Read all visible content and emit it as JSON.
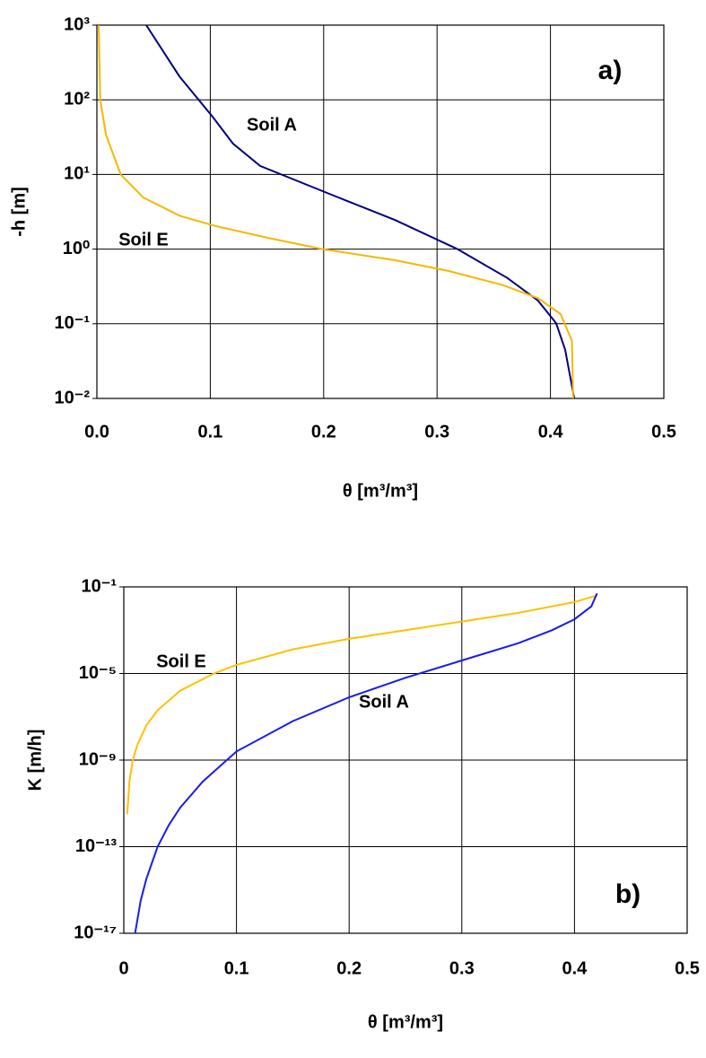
{
  "chart_data": [
    {
      "type": "line",
      "panel_label": "a)",
      "x_label": "θ [m³/m³]",
      "y_label": "-h [m]",
      "xlim": [
        0,
        0.5
      ],
      "xticks": [
        {
          "value": 0,
          "label": "0.0"
        },
        0.1,
        0.2,
        0.3,
        0.4,
        0.5
      ],
      "ylim": [
        0.01,
        1000
      ],
      "y_log": true,
      "yticks": [
        {
          "value": 0.01,
          "label": "10⁻²"
        },
        {
          "value": 0.1,
          "label": "10⁻¹"
        },
        {
          "value": 1,
          "label": "10⁰"
        },
        {
          "value": 10,
          "label": "10¹"
        },
        {
          "value": 100,
          "label": "10²"
        },
        {
          "value": 1000,
          "label": "10³"
        }
      ],
      "grid": true,
      "series": [
        {
          "name": "Soil A",
          "color": "#000080",
          "x": [
            0.0435,
            0.0728,
            0.102,
            0.12,
            0.144,
            0.203,
            0.263,
            0.318,
            0.362,
            0.389,
            0.405,
            0.413,
            0.421
          ],
          "values": [
            1000,
            206,
            59.5,
            25.9,
            13,
            5.65,
            2.45,
            1.0,
            0.41,
            0.204,
            0.102,
            0.045,
            0.01
          ]
        },
        {
          "name": "Soil E",
          "color": "#F5B800",
          "x": [
            0.0016,
            0.003,
            0.008,
            0.021,
            0.041,
            0.073,
            0.104,
            0.152,
            0.199,
            0.263,
            0.31,
            0.358,
            0.389,
            0.409,
            0.419,
            0.42
          ],
          "values": [
            1000,
            100,
            34,
            10,
            4.9,
            2.8,
            2.05,
            1.4,
            1.0,
            0.71,
            0.51,
            0.33,
            0.22,
            0.135,
            0.059,
            0.01
          ]
        }
      ]
    },
    {
      "type": "line",
      "panel_label": "b)",
      "x_label": "θ  [m³/m³]",
      "y_label": "K [m/h]",
      "xlim": [
        0,
        0.5
      ],
      "xticks": [
        0,
        0.1,
        0.2,
        0.3,
        0.4,
        0.5
      ],
      "ylim": [
        1e-17,
        0.1
      ],
      "y_log": true,
      "yticks": [
        {
          "value": 1e-17,
          "label": "10⁻¹⁷"
        },
        {
          "value": 1e-13,
          "label": "10⁻¹³"
        },
        {
          "value": 1e-09,
          "label": "10⁻⁹"
        },
        {
          "value": 1e-05,
          "label": "10⁻⁵"
        },
        {
          "value": 0.1,
          "label": "10⁻¹"
        }
      ],
      "grid": true,
      "series": [
        {
          "name": "Soil E",
          "color": "#FFC000",
          "x": [
            0.003,
            0.005,
            0.008,
            0.012,
            0.02,
            0.03,
            0.05,
            0.08,
            0.1,
            0.15,
            0.2,
            0.25,
            0.3,
            0.35,
            0.4,
            0.42
          ],
          "values": [
            3.2e-12,
            1e-10,
            1e-09,
            5e-09,
            4e-08,
            2e-07,
            1.6e-06,
            1e-05,
            2.5e-05,
            0.00013,
            0.0004,
            0.001,
            0.0025,
            0.0063,
            0.02,
            0.04
          ]
        },
        {
          "name": "Soil A",
          "color": "#1A1AF0",
          "x": [
            0.01,
            0.015,
            0.02,
            0.03,
            0.04,
            0.05,
            0.07,
            0.1,
            0.15,
            0.2,
            0.25,
            0.3,
            0.35,
            0.38,
            0.4,
            0.415,
            0.42
          ],
          "values": [
            1e-17,
            3.2e-16,
            3.2e-15,
            1e-13,
            1e-12,
            6.3e-12,
            1e-10,
            2.5e-09,
            6.3e-08,
            8e-07,
            6.3e-06,
            4e-05,
            0.00025,
            0.001,
            0.0032,
            0.0126,
            0.05
          ]
        }
      ]
    }
  ]
}
